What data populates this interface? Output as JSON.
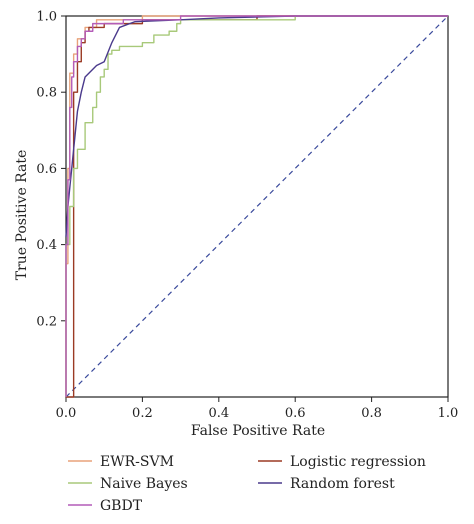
{
  "chart_data": {
    "type": "line",
    "title": "",
    "xlabel": "False Positive Rate",
    "ylabel": "True Positive Rate",
    "xlim": [
      0,
      1.0
    ],
    "ylim": [
      0,
      1.0
    ],
    "x_ticks": [
      "0.0",
      "0.2",
      "0.4",
      "0.6",
      "0.8",
      "1.0"
    ],
    "y_ticks": [
      "0.2",
      "0.4",
      "0.6",
      "0.8",
      "1.0"
    ],
    "grid": false,
    "legend_position": "bottom",
    "series": [
      {
        "name": "EWR-SVM",
        "color": "#e8a27a",
        "points": [
          [
            0,
            0
          ],
          [
            0,
            0.35
          ],
          [
            0.005,
            0.35
          ],
          [
            0.005,
            0.6
          ],
          [
            0.01,
            0.6
          ],
          [
            0.01,
            0.85
          ],
          [
            0.02,
            0.85
          ],
          [
            0.02,
            0.9
          ],
          [
            0.03,
            0.9
          ],
          [
            0.03,
            0.94
          ],
          [
            0.05,
            0.94
          ],
          [
            0.05,
            0.97
          ],
          [
            0.08,
            0.97
          ],
          [
            0.08,
            0.99
          ],
          [
            0.2,
            0.99
          ],
          [
            0.2,
            1.0
          ],
          [
            1.0,
            1.0
          ]
        ]
      },
      {
        "name": "Logistic regression",
        "color": "#9b3a24",
        "points": [
          [
            0,
            0
          ],
          [
            0.02,
            0
          ],
          [
            0.02,
            0.8
          ],
          [
            0.03,
            0.8
          ],
          [
            0.03,
            0.88
          ],
          [
            0.04,
            0.88
          ],
          [
            0.04,
            0.93
          ],
          [
            0.05,
            0.93
          ],
          [
            0.05,
            0.96
          ],
          [
            0.06,
            0.96
          ],
          [
            0.06,
            0.97
          ],
          [
            0.1,
            0.97
          ],
          [
            0.1,
            0.98
          ],
          [
            0.2,
            0.98
          ],
          [
            0.2,
            0.99
          ],
          [
            0.5,
            0.99
          ],
          [
            0.5,
            1.0
          ],
          [
            1.0,
            1.0
          ]
        ]
      },
      {
        "name": "Naive Bayes",
        "color": "#a8c97a",
        "points": [
          [
            0,
            0
          ],
          [
            0,
            0.4
          ],
          [
            0.01,
            0.4
          ],
          [
            0.01,
            0.5
          ],
          [
            0.02,
            0.5
          ],
          [
            0.02,
            0.6
          ],
          [
            0.03,
            0.6
          ],
          [
            0.03,
            0.65
          ],
          [
            0.05,
            0.65
          ],
          [
            0.05,
            0.72
          ],
          [
            0.07,
            0.72
          ],
          [
            0.07,
            0.76
          ],
          [
            0.08,
            0.76
          ],
          [
            0.08,
            0.8
          ],
          [
            0.09,
            0.8
          ],
          [
            0.09,
            0.84
          ],
          [
            0.1,
            0.84
          ],
          [
            0.1,
            0.86
          ],
          [
            0.11,
            0.86
          ],
          [
            0.11,
            0.9
          ],
          [
            0.12,
            0.9
          ],
          [
            0.12,
            0.91
          ],
          [
            0.14,
            0.91
          ],
          [
            0.14,
            0.92
          ],
          [
            0.2,
            0.92
          ],
          [
            0.2,
            0.93
          ],
          [
            0.23,
            0.93
          ],
          [
            0.23,
            0.95
          ],
          [
            0.27,
            0.95
          ],
          [
            0.27,
            0.96
          ],
          [
            0.29,
            0.96
          ],
          [
            0.29,
            0.98
          ],
          [
            0.3,
            0.98
          ],
          [
            0.3,
            0.99
          ],
          [
            0.6,
            0.99
          ],
          [
            0.6,
            1.0
          ],
          [
            1.0,
            1.0
          ]
        ]
      },
      {
        "name": "Random forest",
        "color": "#4a3a8c",
        "points": [
          [
            0,
            0.42
          ],
          [
            0.005,
            0.5
          ],
          [
            0.01,
            0.55
          ],
          [
            0.02,
            0.65
          ],
          [
            0.03,
            0.75
          ],
          [
            0.04,
            0.8
          ],
          [
            0.05,
            0.84
          ],
          [
            0.08,
            0.87
          ],
          [
            0.1,
            0.88
          ],
          [
            0.12,
            0.93
          ],
          [
            0.14,
            0.97
          ],
          [
            0.18,
            0.985
          ],
          [
            0.3,
            0.99
          ],
          [
            0.4,
            0.995
          ],
          [
            0.6,
            1.0
          ],
          [
            1.0,
            1.0
          ]
        ]
      },
      {
        "name": "GBDT",
        "color": "#b45cb8",
        "points": [
          [
            0,
            0
          ],
          [
            0,
            0.4
          ],
          [
            0.005,
            0.4
          ],
          [
            0.005,
            0.57
          ],
          [
            0.01,
            0.57
          ],
          [
            0.01,
            0.76
          ],
          [
            0.015,
            0.76
          ],
          [
            0.015,
            0.84
          ],
          [
            0.02,
            0.84
          ],
          [
            0.02,
            0.88
          ],
          [
            0.03,
            0.88
          ],
          [
            0.03,
            0.92
          ],
          [
            0.04,
            0.92
          ],
          [
            0.04,
            0.94
          ],
          [
            0.05,
            0.94
          ],
          [
            0.05,
            0.96
          ],
          [
            0.07,
            0.96
          ],
          [
            0.07,
            0.98
          ],
          [
            0.15,
            0.98
          ],
          [
            0.15,
            0.99
          ],
          [
            0.3,
            0.99
          ],
          [
            0.3,
            1.0
          ],
          [
            1.0,
            1.0
          ]
        ]
      }
    ],
    "reference_line": {
      "points": [
        [
          0,
          0
        ],
        [
          1,
          1
        ]
      ],
      "color": "#3a4a9c",
      "style": "dashed"
    },
    "legend": {
      "col1": [
        "EWR-SVM",
        "Naive Bayes",
        "GBDT"
      ],
      "col2": [
        "Logistic regression",
        "Random forest"
      ]
    }
  }
}
